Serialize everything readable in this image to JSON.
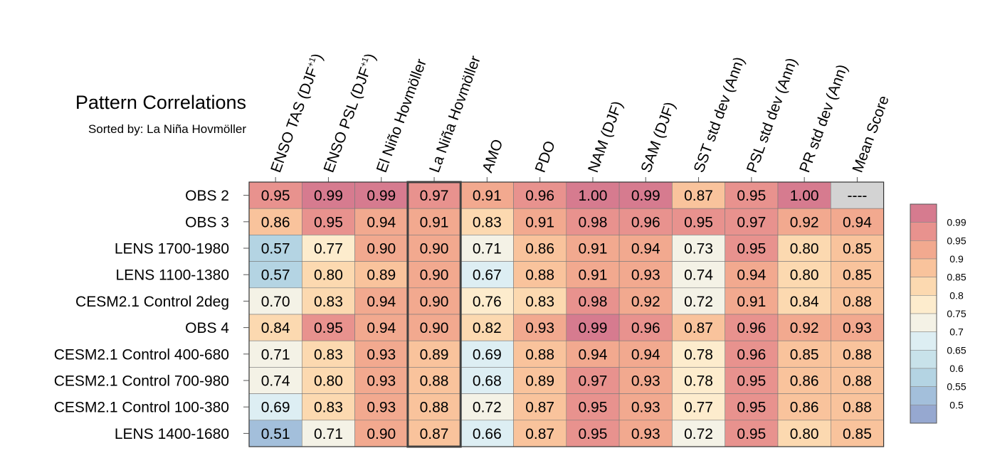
{
  "chart_data": {
    "type": "heatmap",
    "title": "Pattern Correlations",
    "subtitle": "Sorted by: La Niña Hovmöller",
    "columns": [
      {
        "base": "ENSO TAS (DJF",
        "sup": "+1",
        "tail": ")"
      },
      {
        "base": "ENSO PSL (DJF",
        "sup": "+1",
        "tail": ")"
      },
      {
        "base": "El Niño Hovmöller"
      },
      {
        "base": "La Niña Hovmöller"
      },
      {
        "base": "AMO"
      },
      {
        "base": "PDO"
      },
      {
        "base": "NAM (DJF)"
      },
      {
        "base": "SAM (DJF)"
      },
      {
        "base": "SST std dev (Ann)"
      },
      {
        "base": "PSL std dev (Ann)"
      },
      {
        "base": "PR std dev (Ann)"
      },
      {
        "base": "Mean Score"
      }
    ],
    "highlighted_column": 3,
    "rows": [
      {
        "label": "OBS 2",
        "values": [
          "0.95",
          "0.99",
          "0.99",
          "0.97",
          "0.91",
          "0.96",
          "1.00",
          "0.99",
          "0.87",
          "0.95",
          "1.00",
          "----"
        ]
      },
      {
        "label": "OBS 3",
        "values": [
          "0.86",
          "0.95",
          "0.94",
          "0.91",
          "0.83",
          "0.91",
          "0.98",
          "0.96",
          "0.95",
          "0.97",
          "0.92",
          "0.94"
        ]
      },
      {
        "label": "LENS 1700-1980",
        "values": [
          "0.57",
          "0.77",
          "0.90",
          "0.90",
          "0.71",
          "0.86",
          "0.91",
          "0.94",
          "0.73",
          "0.95",
          "0.80",
          "0.85"
        ]
      },
      {
        "label": "LENS 1100-1380",
        "values": [
          "0.57",
          "0.80",
          "0.89",
          "0.90",
          "0.67",
          "0.88",
          "0.91",
          "0.93",
          "0.74",
          "0.94",
          "0.80",
          "0.85"
        ]
      },
      {
        "label": "CESM2.1 Control 2deg",
        "values": [
          "0.70",
          "0.83",
          "0.94",
          "0.90",
          "0.76",
          "0.83",
          "0.98",
          "0.92",
          "0.72",
          "0.91",
          "0.84",
          "0.88"
        ]
      },
      {
        "label": "OBS 4",
        "values": [
          "0.84",
          "0.95",
          "0.94",
          "0.90",
          "0.82",
          "0.93",
          "0.99",
          "0.96",
          "0.87",
          "0.96",
          "0.92",
          "0.93"
        ]
      },
      {
        "label": "CESM2.1 Control 400-680",
        "values": [
          "0.71",
          "0.83",
          "0.93",
          "0.89",
          "0.69",
          "0.88",
          "0.94",
          "0.94",
          "0.78",
          "0.96",
          "0.85",
          "0.88"
        ]
      },
      {
        "label": "CESM2.1 Control 700-980",
        "values": [
          "0.74",
          "0.80",
          "0.93",
          "0.88",
          "0.68",
          "0.89",
          "0.97",
          "0.93",
          "0.78",
          "0.95",
          "0.86",
          "0.88"
        ]
      },
      {
        "label": "CESM2.1 Control 100-380",
        "values": [
          "0.69",
          "0.83",
          "0.93",
          "0.88",
          "0.72",
          "0.87",
          "0.95",
          "0.93",
          "0.77",
          "0.95",
          "0.86",
          "0.88"
        ]
      },
      {
        "label": "LENS 1400-1680",
        "values": [
          "0.51",
          "0.71",
          "0.90",
          "0.87",
          "0.66",
          "0.87",
          "0.95",
          "0.93",
          "0.72",
          "0.95",
          "0.80",
          "0.85"
        ]
      }
    ],
    "colorbar": {
      "ticks": [
        "0.99",
        "0.95",
        "0.9",
        "0.85",
        "0.8",
        "0.75",
        "0.7",
        "0.65",
        "0.6",
        "0.55",
        "0.5"
      ],
      "bins": [
        {
          "min": 0.99,
          "max": 1.01,
          "color": "#d67b8f"
        },
        {
          "min": 0.95,
          "max": 0.99,
          "color": "#e8928e"
        },
        {
          "min": 0.9,
          "max": 0.95,
          "color": "#f2a98f"
        },
        {
          "min": 0.85,
          "max": 0.9,
          "color": "#f9c39c"
        },
        {
          "min": 0.8,
          "max": 0.85,
          "color": "#fcd9b0"
        },
        {
          "min": 0.75,
          "max": 0.8,
          "color": "#fdeccd"
        },
        {
          "min": 0.7,
          "max": 0.75,
          "color": "#f4f2e6"
        },
        {
          "min": 0.65,
          "max": 0.7,
          "color": "#ddeef3"
        },
        {
          "min": 0.6,
          "max": 0.65,
          "color": "#c8e2ea"
        },
        {
          "min": 0.55,
          "max": 0.6,
          "color": "#b4d4e3"
        },
        {
          "min": 0.5,
          "max": 0.55,
          "color": "#a3bfdb"
        },
        {
          "min": 0.0,
          "max": 0.5,
          "color": "#96a8d0"
        }
      ],
      "missing_color": "#d3d3d3"
    }
  }
}
